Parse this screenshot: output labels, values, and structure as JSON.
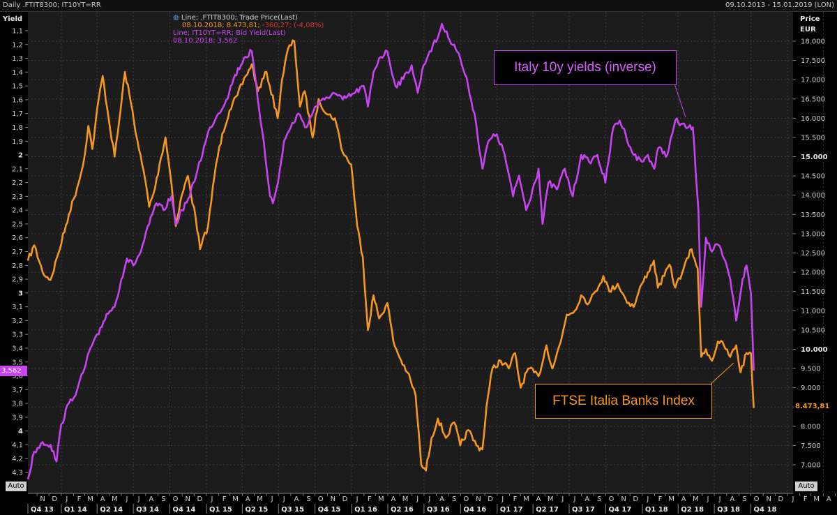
{
  "header": {
    "left": "Daily .FTIT8300; IT10YT=RR",
    "right": "09.10.2013 - 15.01.2019 (LON)"
  },
  "legend": {
    "line1_a": "Line; .FTIT8300; Trade Price(Last)",
    "line1_b_date": "08.10.2018; 8.473,81;",
    "line1_b_chg": " -360,27; (-4,08%)",
    "line2_a": "Line; IT10YT=RR; Bid Yield(Last)",
    "line2_b": "08.10.2018; 3,562"
  },
  "annotations": {
    "yields": "Italy 10y yields (inverse)",
    "banks": "FTSE Italia Banks Index"
  },
  "colors": {
    "banks": "#f5981f",
    "yields": "#c844f2",
    "background": "#1c1c1c",
    "grid": "#444444"
  },
  "auto_left": "Auto",
  "auto_right": "Auto",
  "chart_data": {
    "type": "line",
    "left_axis": {
      "title": "Yield",
      "inverted": true,
      "ticks": [
        "1,1",
        "1,2",
        "1,3",
        "1,4",
        "1,5",
        "1,6",
        "1,7",
        "1,8",
        "1,9",
        "2",
        "2,1",
        "2,2",
        "2,3",
        "2,4",
        "2,5",
        "2,6",
        "2,7",
        "2,8",
        "2,9",
        "3",
        "3,1",
        "3,2",
        "3,3",
        "3,4",
        "3,5",
        "3,6",
        "3,7",
        "3,8",
        "3,9",
        "4",
        "4,1",
        "4,2",
        "4,3"
      ],
      "bold_ticks": [
        "2",
        "3",
        "4"
      ],
      "last_value": "3,562"
    },
    "right_axis": {
      "title": "Price",
      "unit": "EUR",
      "ticks": [
        "18.000",
        "17.500",
        "17.000",
        "16.500",
        "16.000",
        "15.500",
        "15.000",
        "14.500",
        "14.000",
        "13.500",
        "13.000",
        "12.500",
        "12.000",
        "11.500",
        "11.000",
        "10.500",
        "10.000",
        "9.500",
        "9.000",
        "8.500",
        "8.000",
        "7.500",
        "7.000"
      ],
      "bold_ticks": [
        "15.000",
        "10.000"
      ],
      "last_value": "8.473,81"
    },
    "months": [
      "N",
      "D",
      "J",
      "F",
      "M",
      "A",
      "M",
      "J",
      "J",
      "A",
      "S",
      "O",
      "N",
      "D",
      "J",
      "F",
      "M",
      "A",
      "M",
      "J",
      "J",
      "A",
      "S",
      "O",
      "N",
      "D",
      "J",
      "F",
      "M",
      "A",
      "M",
      "J",
      "J",
      "A",
      "S",
      "O",
      "N",
      "D",
      "J",
      "F",
      "M",
      "A",
      "M",
      "J",
      "J",
      "A",
      "S",
      "O",
      "N",
      "D",
      "J",
      "F",
      "M",
      "A",
      "M",
      "J",
      "J",
      "A",
      "S",
      "O",
      "N",
      "D",
      "J",
      "F",
      "M",
      "A",
      "M",
      "J",
      "J",
      "A",
      "S",
      "O",
      "N",
      "D",
      "J"
    ],
    "quarters": [
      "Q4 13",
      "Q1 14",
      "Q2 14",
      "Q3 14",
      "Q4 14",
      "Q1 15",
      "Q2 15",
      "Q3 15",
      "Q4 15",
      "Q1 16",
      "Q2 16",
      "Q3 16",
      "Q4 16",
      "Q1 17",
      "Q2 17",
      "Q3 17",
      "Q4 17",
      "Q1 18",
      "Q2 18",
      "Q3 18",
      "Q4 18"
    ],
    "series": [
      {
        "name": "FTSE Italia Banks Index",
        "axis": "right",
        "points": [
          [
            "2013-10-09",
            12300
          ],
          [
            "2013-10-25",
            12700
          ],
          [
            "2013-11-15",
            12000
          ],
          [
            "2013-12-05",
            11800
          ],
          [
            "2013-12-25",
            12500
          ],
          [
            "2014-01-20",
            13500
          ],
          [
            "2014-02-10",
            14200
          ],
          [
            "2014-02-25",
            14800
          ],
          [
            "2014-03-10",
            15800
          ],
          [
            "2014-03-20",
            15200
          ],
          [
            "2014-04-05",
            16500
          ],
          [
            "2014-04-15",
            17100
          ],
          [
            "2014-04-30",
            16000
          ],
          [
            "2014-05-15",
            15000
          ],
          [
            "2014-05-30",
            16200
          ],
          [
            "2014-06-10",
            17200
          ],
          [
            "2014-06-25",
            16400
          ],
          [
            "2014-07-15",
            15200
          ],
          [
            "2014-07-31",
            14400
          ],
          [
            "2014-08-10",
            13700
          ],
          [
            "2014-08-25",
            14200
          ],
          [
            "2014-09-05",
            14800
          ],
          [
            "2014-09-20",
            15500
          ],
          [
            "2014-10-05",
            14300
          ],
          [
            "2014-10-16",
            13200
          ],
          [
            "2014-10-31",
            14000
          ],
          [
            "2014-11-15",
            14500
          ],
          [
            "2014-12-05",
            13400
          ],
          [
            "2014-12-16",
            12600
          ],
          [
            "2015-01-05",
            13200
          ],
          [
            "2015-01-25",
            14800
          ],
          [
            "2015-02-10",
            15600
          ],
          [
            "2015-02-28",
            16200
          ],
          [
            "2015-03-20",
            16600
          ],
          [
            "2015-04-10",
            17100
          ],
          [
            "2015-04-25",
            17400
          ],
          [
            "2015-05-10",
            16700
          ],
          [
            "2015-06-01",
            17200
          ],
          [
            "2015-06-29",
            16000
          ],
          [
            "2015-07-10",
            17000
          ],
          [
            "2015-07-25",
            17800
          ],
          [
            "2015-08-10",
            18000
          ],
          [
            "2015-08-24",
            16300
          ],
          [
            "2015-09-05",
            16700
          ],
          [
            "2015-09-25",
            15500
          ],
          [
            "2015-10-10",
            16500
          ],
          [
            "2015-10-31",
            16100
          ],
          [
            "2015-11-20",
            16000
          ],
          [
            "2015-12-10",
            15100
          ],
          [
            "2015-12-31",
            14800
          ],
          [
            "2016-01-15",
            13200
          ],
          [
            "2016-01-29",
            12400
          ],
          [
            "2016-02-11",
            10500
          ],
          [
            "2016-02-25",
            11400
          ],
          [
            "2016-03-10",
            10800
          ],
          [
            "2016-03-31",
            11200
          ],
          [
            "2016-04-15",
            10200
          ],
          [
            "2016-04-30",
            9800
          ],
          [
            "2016-05-20",
            9400
          ],
          [
            "2016-06-10",
            8800
          ],
          [
            "2016-06-24",
            7000
          ],
          [
            "2016-07-06",
            6850
          ],
          [
            "2016-07-20",
            7700
          ],
          [
            "2016-08-05",
            8200
          ],
          [
            "2016-08-25",
            7700
          ],
          [
            "2016-09-15",
            8100
          ],
          [
            "2016-09-30",
            7500
          ],
          [
            "2016-10-20",
            7900
          ],
          [
            "2016-11-10",
            7500
          ],
          [
            "2016-11-25",
            7400
          ],
          [
            "2016-12-05",
            8500
          ],
          [
            "2016-12-20",
            9500
          ],
          [
            "2017-01-10",
            9700
          ],
          [
            "2017-01-30",
            9500
          ],
          [
            "2017-02-15",
            9900
          ],
          [
            "2017-03-01",
            9000
          ],
          [
            "2017-03-20",
            9500
          ],
          [
            "2017-04-15",
            9300
          ],
          [
            "2017-05-05",
            10100
          ],
          [
            "2017-05-20",
            9500
          ],
          [
            "2017-06-10",
            10200
          ],
          [
            "2017-06-25",
            10900
          ],
          [
            "2017-07-15",
            11000
          ],
          [
            "2017-07-31",
            11400
          ],
          [
            "2017-08-20",
            11200
          ],
          [
            "2017-09-05",
            11500
          ],
          [
            "2017-09-25",
            11900
          ],
          [
            "2017-10-10",
            11500
          ],
          [
            "2017-10-31",
            11700
          ],
          [
            "2017-11-20",
            11300
          ],
          [
            "2017-12-10",
            11100
          ],
          [
            "2017-12-31",
            11700
          ],
          [
            "2018-01-15",
            12000
          ],
          [
            "2018-01-30",
            12300
          ],
          [
            "2018-02-09",
            11600
          ],
          [
            "2018-02-25",
            11900
          ],
          [
            "2018-03-10",
            12200
          ],
          [
            "2018-03-25",
            11600
          ],
          [
            "2018-04-15",
            12100
          ],
          [
            "2018-05-05",
            12600
          ],
          [
            "2018-05-20",
            12100
          ],
          [
            "2018-05-29",
            9800
          ],
          [
            "2018-06-10",
            10000
          ],
          [
            "2018-06-25",
            9700
          ],
          [
            "2018-07-10",
            10200
          ],
          [
            "2018-07-25",
            10100
          ],
          [
            "2018-08-10",
            9800
          ],
          [
            "2018-08-25",
            10100
          ],
          [
            "2018-09-05",
            9400
          ],
          [
            "2018-09-20",
            9900
          ],
          [
            "2018-10-01",
            9900
          ],
          [
            "2018-10-08",
            8473.81
          ]
        ]
      },
      {
        "name": "Italy 10y yields (inverse)",
        "axis": "left",
        "points": [
          [
            "2013-10-09",
            4.35
          ],
          [
            "2013-10-25",
            4.15
          ],
          [
            "2013-11-15",
            4.08
          ],
          [
            "2013-12-05",
            4.1
          ],
          [
            "2013-12-20",
            4.22
          ],
          [
            "2014-01-01",
            3.95
          ],
          [
            "2014-01-20",
            3.8
          ],
          [
            "2014-02-10",
            3.7
          ],
          [
            "2014-02-28",
            3.55
          ],
          [
            "2014-03-15",
            3.4
          ],
          [
            "2014-04-05",
            3.3
          ],
          [
            "2014-04-25",
            3.15
          ],
          [
            "2014-05-15",
            3.1
          ],
          [
            "2014-06-01",
            2.9
          ],
          [
            "2014-06-15",
            2.75
          ],
          [
            "2014-07-01",
            2.8
          ],
          [
            "2014-07-20",
            2.7
          ],
          [
            "2014-08-10",
            2.5
          ],
          [
            "2014-08-28",
            2.35
          ],
          [
            "2014-09-15",
            2.4
          ],
          [
            "2014-10-05",
            2.3
          ],
          [
            "2014-10-16",
            2.5
          ],
          [
            "2014-10-31",
            2.4
          ],
          [
            "2014-11-20",
            2.3
          ],
          [
            "2014-12-10",
            2.1
          ],
          [
            "2015-01-10",
            1.8
          ],
          [
            "2015-01-31",
            1.7
          ],
          [
            "2015-02-20",
            1.6
          ],
          [
            "2015-03-10",
            1.45
          ],
          [
            "2015-04-05",
            1.3
          ],
          [
            "2015-04-25",
            1.25
          ],
          [
            "2015-05-10",
            1.6
          ],
          [
            "2015-05-25",
            1.9
          ],
          [
            "2015-06-10",
            2.3
          ],
          [
            "2015-06-17",
            2.35
          ],
          [
            "2015-06-30",
            2.2
          ],
          [
            "2015-07-15",
            1.9
          ],
          [
            "2015-08-01",
            1.8
          ],
          [
            "2015-08-20",
            1.7
          ],
          [
            "2015-09-10",
            1.8
          ],
          [
            "2015-10-01",
            1.65
          ],
          [
            "2015-10-25",
            1.6
          ],
          [
            "2015-11-15",
            1.55
          ],
          [
            "2015-12-10",
            1.6
          ],
          [
            "2016-01-10",
            1.55
          ],
          [
            "2016-01-31",
            1.5
          ],
          [
            "2016-02-11",
            1.65
          ],
          [
            "2016-02-25",
            1.4
          ],
          [
            "2016-03-10",
            1.3
          ],
          [
            "2016-03-31",
            1.25
          ],
          [
            "2016-04-20",
            1.5
          ],
          [
            "2016-05-10",
            1.45
          ],
          [
            "2016-05-31",
            1.35
          ],
          [
            "2016-06-15",
            1.55
          ],
          [
            "2016-06-30",
            1.35
          ],
          [
            "2016-07-15",
            1.25
          ],
          [
            "2016-08-05",
            1.15
          ],
          [
            "2016-08-15",
            1.05
          ],
          [
            "2016-08-31",
            1.15
          ],
          [
            "2016-09-15",
            1.2
          ],
          [
            "2016-09-30",
            1.3
          ],
          [
            "2016-10-20",
            1.5
          ],
          [
            "2016-11-05",
            1.7
          ],
          [
            "2016-11-25",
            2.1
          ],
          [
            "2016-12-10",
            1.9
          ],
          [
            "2016-12-31",
            1.85
          ],
          [
            "2017-01-20",
            2.0
          ],
          [
            "2017-02-10",
            2.3
          ],
          [
            "2017-02-25",
            2.15
          ],
          [
            "2017-03-15",
            2.4
          ],
          [
            "2017-03-31",
            2.25
          ],
          [
            "2017-04-15",
            2.1
          ],
          [
            "2017-04-25",
            2.5
          ],
          [
            "2017-05-10",
            2.2
          ],
          [
            "2017-05-31",
            2.25
          ],
          [
            "2017-06-20",
            2.1
          ],
          [
            "2017-07-10",
            2.3
          ],
          [
            "2017-07-31",
            2.0
          ],
          [
            "2017-08-20",
            2.05
          ],
          [
            "2017-09-10",
            2.0
          ],
          [
            "2017-09-30",
            2.2
          ],
          [
            "2017-10-20",
            1.8
          ],
          [
            "2017-11-05",
            1.75
          ],
          [
            "2017-11-20",
            1.85
          ],
          [
            "2017-12-10",
            2.0
          ],
          [
            "2017-12-31",
            2.05
          ],
          [
            "2018-01-15",
            2.0
          ],
          [
            "2018-01-31",
            2.1
          ],
          [
            "2018-02-10",
            1.95
          ],
          [
            "2018-03-05",
            2.0
          ],
          [
            "2018-03-25",
            1.75
          ],
          [
            "2018-04-20",
            1.8
          ],
          [
            "2018-05-08",
            1.8
          ],
          [
            "2018-05-22",
            2.4
          ],
          [
            "2018-05-29",
            3.1
          ],
          [
            "2018-06-10",
            2.6
          ],
          [
            "2018-06-25",
            2.7
          ],
          [
            "2018-07-10",
            2.65
          ],
          [
            "2018-07-25",
            2.75
          ],
          [
            "2018-08-10",
            2.9
          ],
          [
            "2018-08-25",
            3.2
          ],
          [
            "2018-09-10",
            2.9
          ],
          [
            "2018-09-20",
            2.8
          ],
          [
            "2018-10-01",
            3.0
          ],
          [
            "2018-10-08",
            3.562
          ]
        ]
      }
    ]
  }
}
